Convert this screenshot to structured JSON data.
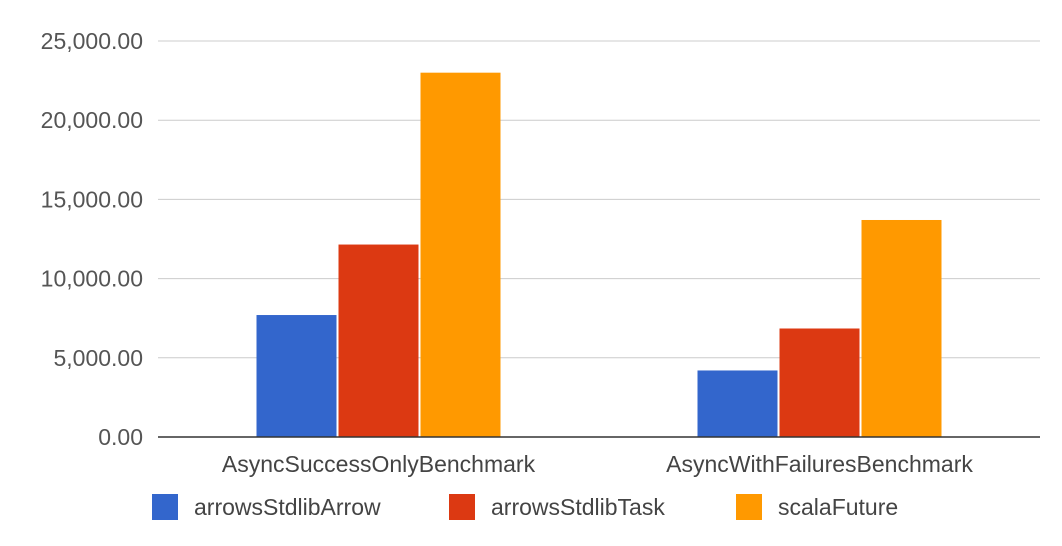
{
  "chart_data": {
    "type": "bar",
    "title": "",
    "xlabel": "",
    "ylabel": "",
    "categories": [
      "AsyncSuccessOnlyBenchmark",
      "AsyncWithFailuresBenchmark"
    ],
    "series": [
      {
        "name": "arrowsStdlibArrow",
        "color": "#3366cc",
        "values": [
          7700,
          4200
        ]
      },
      {
        "name": "arrowsStdlibTask",
        "color": "#dc3912",
        "values": [
          12150,
          6850
        ]
      },
      {
        "name": "scalaFuture",
        "color": "#ff9900",
        "values": [
          23000,
          13700
        ]
      }
    ],
    "ylim": [
      0,
      25000
    ],
    "yticks": [
      0,
      5000,
      10000,
      15000,
      20000,
      25000
    ],
    "ytick_labels": [
      "0.00",
      "5,000.00",
      "10,000.00",
      "15,000.00",
      "20,000.00",
      "25,000.00"
    ],
    "grid": true,
    "legend_position": "bottom"
  }
}
